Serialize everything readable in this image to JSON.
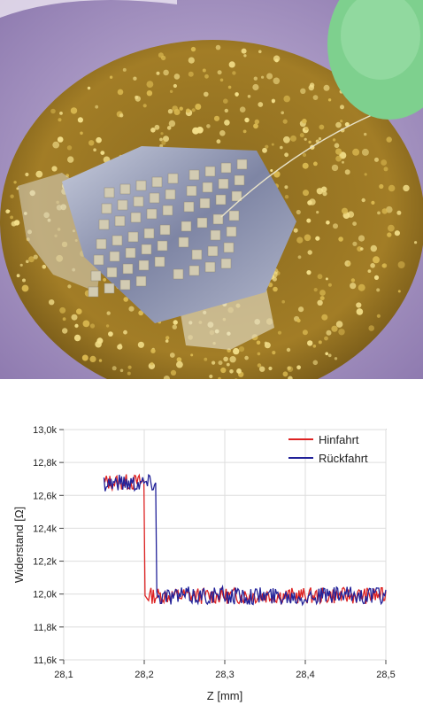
{
  "photo": {
    "icon": "microelectrode-array-photo",
    "colors": {
      "background": "#9a86b8",
      "gold": "#b08a2a",
      "silver": "#9aa0b8",
      "pad": "#cfc7b0",
      "green": "#7ed08e"
    }
  },
  "chart_data": {
    "type": "line",
    "xlabel": "Z [mm]",
    "ylabel": "Widerstand [Ω]",
    "xlim": [
      28.1,
      28.5
    ],
    "ylim": [
      11.6,
      13.0
    ],
    "x_ticks": [
      "28,1",
      "28,2",
      "28,3",
      "28,4",
      "28,5"
    ],
    "y_ticks": [
      "11,6k",
      "11,8k",
      "12,0k",
      "12,2k",
      "12,4k",
      "12,6k",
      "12,8k",
      "13,0k"
    ],
    "grid": true,
    "legend_position": "top-right",
    "series": [
      {
        "name": "Hinfahrt",
        "color": "#dd2222",
        "x_start": 28.15,
        "x_end": 28.5,
        "step_at": 28.2,
        "high_mean": 12.68,
        "low_mean": 11.99,
        "noise": 0.05
      },
      {
        "name": "Rückfahrt",
        "color": "#222299",
        "x_start": 28.15,
        "x_end": 28.5,
        "step_at": 28.215,
        "high_mean": 12.68,
        "low_mean": 11.99,
        "noise": 0.055
      }
    ]
  }
}
